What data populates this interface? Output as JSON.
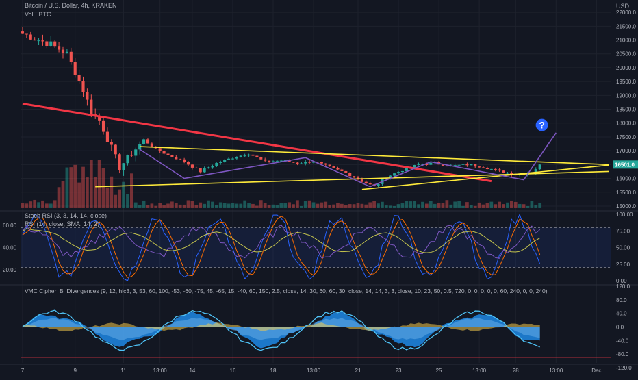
{
  "header": {
    "title": "Bitcoin / U.S. Dollar, 4h, KRAKEN",
    "volume_label": "Vol · BTC",
    "currency": "USD",
    "stoch_label": "Stoch RSI (3, 3, 14, 14, close)",
    "rsi_label": "RSI (14, close, SMA, 14, 2)",
    "vmc_label": "VMC Cipher_B_Divergences (9, 12, hlc3, 3, 53, 60, 100, -53, -60, -75, 45, -65, 15, -40, 60, 150, 2.5, close, 14, 30, 60, 60, 30, close, 14, 14, 3, 3, close, 10, 23, 50, 0.5, 720, 0, 0, 0, 0, 0, 60, 240, 0, 0, 240)"
  },
  "colors": {
    "background": "#131722",
    "up": "#26a69a",
    "down": "#ef5350",
    "trend_red": "#f23645",
    "trend_yellow": "#ffeb3b",
    "trend_purple": "#7e57c2",
    "question_badge": "#2962ff",
    "stoch_k": "#2962ff",
    "stoch_d": "#ff6d00",
    "rsi_line": "#7e57c2",
    "rsi_ma": "#c6c64d"
  },
  "chart_data": [
    {
      "type": "candlestick",
      "title": "Bitcoin / U.S. Dollar, 4h, KRAKEN",
      "ylabel": "USD",
      "ylim": [
        14900,
        22300
      ],
      "y_ticks": [
        15000,
        15500,
        16000,
        16500,
        17000,
        17500,
        18000,
        18500,
        19000,
        19500,
        20000,
        20500,
        21000,
        21500,
        22000
      ],
      "x_tick_labels": [
        "7",
        "9",
        "11",
        "13:00",
        "14",
        "16",
        "18",
        "13:00",
        "21",
        "23",
        "25",
        "13:00",
        "28",
        "13:00",
        "Dec"
      ],
      "last_price": "16501.0",
      "question_mark": "?",
      "close_points": [
        [
          0,
          21250
        ],
        [
          3,
          21050
        ],
        [
          7,
          20850
        ],
        [
          11,
          20500
        ],
        [
          15,
          19200
        ],
        [
          17,
          18400
        ],
        [
          19,
          18100
        ],
        [
          22,
          17100
        ],
        [
          24,
          16400
        ],
        [
          27,
          16900
        ],
        [
          30,
          17400
        ],
        [
          33,
          17050
        ],
        [
          36,
          16850
        ],
        [
          40,
          16600
        ],
        [
          44,
          16250
        ],
        [
          48,
          16550
        ],
        [
          52,
          16750
        ],
        [
          56,
          16900
        ],
        [
          60,
          16600
        ],
        [
          64,
          16650
        ],
        [
          68,
          16550
        ],
        [
          72,
          16620
        ],
        [
          76,
          16400
        ],
        [
          80,
          16200
        ],
        [
          84,
          15900
        ],
        [
          87,
          15700
        ],
        [
          90,
          16050
        ],
        [
          94,
          16300
        ],
        [
          98,
          16500
        ],
        [
          102,
          16550
        ],
        [
          106,
          16450
        ],
        [
          110,
          16500
        ],
        [
          114,
          16420
        ],
        [
          118,
          16250
        ],
        [
          122,
          16150
        ],
        [
          126,
          16200
        ],
        [
          128,
          16501
        ]
      ],
      "annotations": {
        "red_trendline": [
          [
            0,
            18700
          ],
          [
            116,
            15900
          ]
        ],
        "yellow_upper": [
          [
            29,
            17150
          ],
          [
            145,
            16500
          ]
        ],
        "yellow_lower": [
          [
            18,
            15700
          ],
          [
            145,
            16250
          ]
        ],
        "yellow_inner": [
          [
            84,
            15600
          ],
          [
            145,
            16480
          ]
        ],
        "purple_path": [
          [
            29,
            17050
          ],
          [
            40,
            16000
          ],
          [
            70,
            16750
          ],
          [
            86,
            15700
          ],
          [
            101,
            16600
          ],
          [
            124,
            15950
          ],
          [
            132,
            17650
          ]
        ]
      }
    },
    {
      "type": "line",
      "title": "Stoch RSI (3, 3, 14, 14, close)",
      "ylim": [
        0,
        100
      ],
      "y_ticks_right": [
        "100.00",
        "75.00",
        "50.00",
        "25.00",
        "0.00"
      ],
      "bands": [
        80,
        20
      ]
    },
    {
      "type": "line",
      "title": "RSI (14, close, SMA, 14, 2)",
      "ylim": [
        10,
        70
      ],
      "y_ticks_left": [
        "60.00",
        "40.00",
        "20.00"
      ]
    },
    {
      "type": "area",
      "title": "VMC Cipher_B_Divergences",
      "ylim": [
        -100,
        100
      ],
      "y_ticks_right": [
        "120.0",
        "80.0",
        "40.0",
        "0.0",
        "-40.0",
        "-80.0",
        "-120.0"
      ]
    }
  ]
}
